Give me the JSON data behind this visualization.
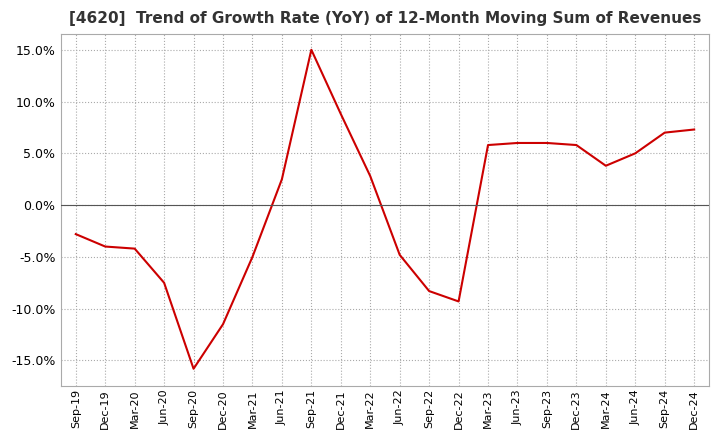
{
  "title": "[4620]  Trend of Growth Rate (YoY) of 12-Month Moving Sum of Revenues",
  "title_fontsize": 11,
  "line_color": "#cc0000",
  "background_color": "#ffffff",
  "grid_color": "#aaaaaa",
  "zero_line_color": "#555555",
  "ylim": [
    -0.175,
    0.165
  ],
  "yticks": [
    -0.15,
    -0.1,
    -0.05,
    0.0,
    0.05,
    0.1,
    0.15
  ],
  "x_labels": [
    "Sep-19",
    "Dec-19",
    "Mar-20",
    "Jun-20",
    "Sep-20",
    "Dec-20",
    "Mar-21",
    "Jun-21",
    "Sep-21",
    "Dec-21",
    "Mar-22",
    "Jun-22",
    "Sep-22",
    "Dec-22",
    "Mar-23",
    "Jun-23",
    "Sep-23",
    "Dec-23",
    "Mar-24",
    "Jun-24",
    "Sep-24",
    "Dec-24"
  ],
  "y_values": [
    -0.028,
    -0.04,
    -0.042,
    -0.075,
    -0.158,
    -0.115,
    -0.05,
    0.025,
    0.15,
    0.088,
    0.028,
    -0.048,
    -0.083,
    -0.093,
    0.058,
    0.06,
    0.06,
    0.058,
    0.038,
    0.05,
    0.07,
    0.073
  ]
}
